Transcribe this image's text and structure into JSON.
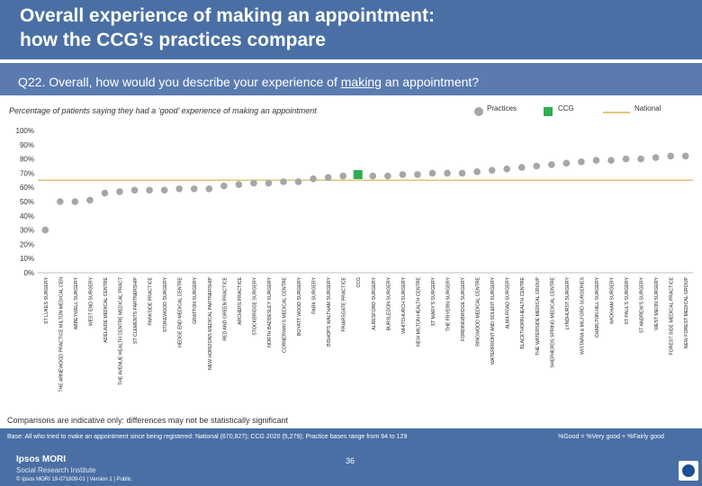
{
  "header": {
    "title": "Overall experience of making an appointment:\nhow the CCG’s practices compare",
    "question_pre": "Q22. Overall, how would you describe your experience of ",
    "question_underlined": "making",
    "question_post": " an appointment?"
  },
  "legend": {
    "practices": "Practices",
    "ccg": "CCG",
    "national": "National"
  },
  "chart_data": {
    "type": "scatter",
    "title": "Percentage of patients saying they had a ‘good’ experience of making an appointment",
    "ylabel": "%",
    "ylim": [
      0,
      100
    ],
    "yticks": [
      "0%",
      "10%",
      "20%",
      "30%",
      "40%",
      "50%",
      "60%",
      "70%",
      "80%",
      "90%",
      "100%"
    ],
    "ccg_category": "CCG",
    "national_value": 65,
    "categories": [
      "ST LUKES SURGERY",
      "THE ARNEWOOD PRACTICE MILTON MEDICAL CEN",
      "ABBEYWELL SURGERY",
      "WEST END SURGERY",
      "ADELAIDE MEDICAL CENTRE",
      "THE AVENUE HEALTH CENTRE MEDICAL PRACT",
      "ST CLEMENTS PARTNERSHIP",
      "PARKSIDE PRACTICE",
      "STOKEWOOD SURGERY",
      "HEDGE END MEDICAL CENTRE",
      "GRATTON SURGERY",
      "NEW HORIZONS MEDICAL PARTNERSHIP",
      "RED AND GREEN PRACTICE",
      "ARCHERS PRACTICE",
      "STOCKBRIDGE SURGERY",
      "NORTH BADDESLEY SURGERY",
      "CORNERWAYS MEDICAL CENTRE",
      "BOYATT WOOD SURGERY",
      "PARK SURGERY",
      "BISHOPS WALTHAM SURGERY",
      "FRIARSGATE PRACTICE",
      "CCG",
      "ALRESFORD SURGERY",
      "BURSLEDON SURGERY",
      "WHITCHURCH SURGERY",
      "NEW MILTON HEALTH CENTRE",
      "ST MARY'S SURGERY",
      "THE FRYERN SURGERY",
      "FORDINGBRIDGE SURGERY",
      "RINGWOOD MEDICAL CENTRE",
      "WATERFRONT AND SOLENT SURGERY",
      "ALMA ROAD SURGERY",
      "BLACKTHORN HEALTH CENTRE",
      "THE WATERSIDE MEDICAL GROUP",
      "SHEPHERDS SPRING MEDICAL CENTRE",
      "LYNDHURST SURGERY",
      "WISTARIA & MILFORD SURGERIES",
      "CHARLTON HILL SURGERY",
      "WICKHAM SURGERY",
      "ST PAUL'S SURGERY",
      "ST ANDREW'S SURGERY",
      "WEST MEON SURGERY",
      "FOREST SIDE MEDICAL PRACTICE",
      "NEW FOREST MEDICAL GROUP"
    ],
    "values": [
      30,
      50,
      50,
      51,
      56,
      57,
      58,
      58,
      58,
      59,
      59,
      59,
      61,
      62,
      63,
      63,
      64,
      64,
      66,
      67,
      68,
      69,
      68,
      68,
      69,
      69,
      70,
      70,
      70,
      71,
      72,
      73,
      74,
      75,
      76,
      77,
      78,
      79,
      79,
      80,
      80,
      81,
      82,
      82
    ]
  },
  "notes": {
    "comparison": "Comparisons are indicative only: differences may not be statistically significant",
    "base": "Base: All who tried to make an appointment since being registered: National (670,827); CCG 2020 (5,279); Practice bases range from 94 to 129",
    "good_def": "%Good = %Very good + %Fairly good",
    "page": "36",
    "brand1": "Ipsos MORI",
    "brand2": "Social Research Institute",
    "copyright": "© Ipsos MORI     19-071809-01 | Version 1 | Public"
  },
  "colors": {
    "header": "#4a6fa5",
    "practice_dot": "#a6a6a6",
    "ccg_marker": "#2eae4f",
    "national_line": "#e1c57a"
  }
}
